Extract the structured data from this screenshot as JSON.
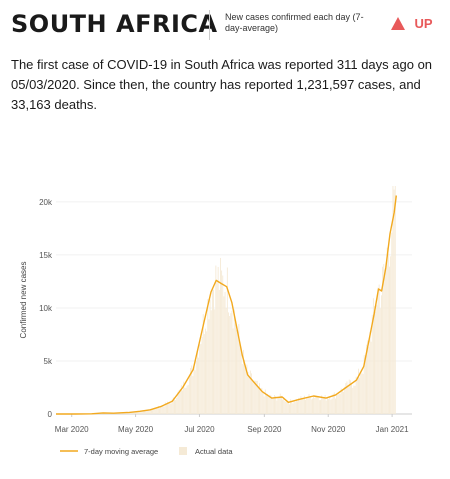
{
  "header": {
    "country": "SOUTH AFRICA",
    "subtitle": "New cases confirmed each day (7-day-average)",
    "trend_label": "UP",
    "trend_icon": "up-triangle-icon",
    "trend_color": "#e8595a"
  },
  "summary": "The first case of COVID-19 in South Africa was reported 311 days ago on 05/03/2020. Since then, the country has reported 1,231,597 cases, and 33,163 deaths.",
  "chart_data": {
    "type": "line",
    "ylabel": "Confirmed new cases",
    "yticks": [
      0,
      5000,
      10000,
      15000,
      20000
    ],
    "ytick_labels": [
      "0",
      "5k",
      "10k",
      "15k",
      "20k"
    ],
    "ylim": [
      0,
      21500
    ],
    "xlim": [
      "2020-02-15",
      "2021-01-20"
    ],
    "xticks": [
      "2020-03-01",
      "2020-05-01",
      "2020-07-01",
      "2020-09-01",
      "2020-11-01",
      "2021-01-01"
    ],
    "xtick_labels": [
      "Mar 2020",
      "May 2020",
      "Jul 2020",
      "Sep 2020",
      "Nov 2020",
      "Jan 2021"
    ],
    "line_color": "#f2a91f",
    "bar_color": "#f5ead6",
    "legend": [
      {
        "label": "7-day moving average",
        "kind": "line"
      },
      {
        "label": "Actual data",
        "kind": "bar"
      }
    ],
    "series": [
      {
        "name": "7-day moving average",
        "points": [
          [
            "2020-02-15",
            0
          ],
          [
            "2020-03-05",
            0
          ],
          [
            "2020-03-20",
            20
          ],
          [
            "2020-03-31",
            100
          ],
          [
            "2020-04-10",
            80
          ],
          [
            "2020-04-25",
            150
          ],
          [
            "2020-05-05",
            250
          ],
          [
            "2020-05-15",
            400
          ],
          [
            "2020-05-25",
            700
          ],
          [
            "2020-06-05",
            1200
          ],
          [
            "2020-06-15",
            2500
          ],
          [
            "2020-06-25",
            4200
          ],
          [
            "2020-07-05",
            8500
          ],
          [
            "2020-07-12",
            11500
          ],
          [
            "2020-07-17",
            12600
          ],
          [
            "2020-07-22",
            12300
          ],
          [
            "2020-07-27",
            12000
          ],
          [
            "2020-08-01",
            10500
          ],
          [
            "2020-08-06",
            8000
          ],
          [
            "2020-08-11",
            5500
          ],
          [
            "2020-08-16",
            3700
          ],
          [
            "2020-08-22",
            3000
          ],
          [
            "2020-08-30",
            2100
          ],
          [
            "2020-09-08",
            1500
          ],
          [
            "2020-09-18",
            1600
          ],
          [
            "2020-09-24",
            1100
          ],
          [
            "2020-10-05",
            1400
          ],
          [
            "2020-10-18",
            1700
          ],
          [
            "2020-10-30",
            1500
          ],
          [
            "2020-11-08",
            1800
          ],
          [
            "2020-11-18",
            2500
          ],
          [
            "2020-11-28",
            3200
          ],
          [
            "2020-12-05",
            4500
          ],
          [
            "2020-12-10",
            7000
          ],
          [
            "2020-12-15",
            9500
          ],
          [
            "2020-12-19",
            11800
          ],
          [
            "2020-12-22",
            11600
          ],
          [
            "2020-12-26",
            13800
          ],
          [
            "2020-12-30",
            17000
          ],
          [
            "2021-01-03",
            19000
          ],
          [
            "2021-01-05",
            20600
          ]
        ]
      }
    ]
  }
}
